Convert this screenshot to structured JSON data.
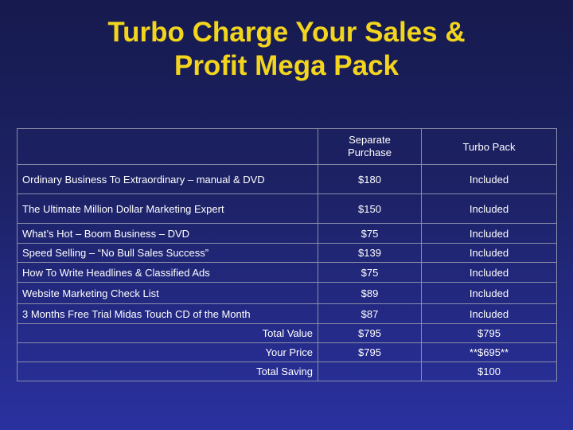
{
  "title": {
    "line1": "Turbo Charge Your Sales &",
    "line2": "Profit Mega Pack"
  },
  "table": {
    "headers": [
      "",
      "Separate Purchase",
      "Turbo Pack"
    ],
    "header_lines": {
      "separate_1": "Separate",
      "separate_2": "Purchase"
    },
    "rows": [
      [
        "Ordinary Business To Extraordinary – manual & DVD",
        "$180",
        "Included"
      ],
      [
        "The Ultimate Million Dollar Marketing Expert",
        "$150",
        "Included"
      ],
      [
        "What’s Hot – Boom Business – DVD",
        "$75",
        "Included"
      ],
      [
        "Speed Selling – “No Bull Sales Success”",
        "$139",
        "Included"
      ],
      [
        "How To Write Headlines & Classified Ads",
        "$75",
        "Included"
      ],
      [
        "Website Marketing Check List",
        "$89",
        "Included"
      ],
      [
        "3 Months Free Trial Midas Touch CD of the Month",
        "$87",
        "Included"
      ]
    ],
    "summary": [
      [
        "Total Value",
        "$795",
        "$795"
      ],
      [
        "Your Price",
        "$795",
        "**$695**"
      ],
      [
        "Total Saving",
        "",
        "$100"
      ]
    ]
  },
  "colors": {
    "title": "#f2d51c",
    "background": "#1d2266",
    "text": "#ffffff",
    "grid": "#8a8ea8"
  }
}
